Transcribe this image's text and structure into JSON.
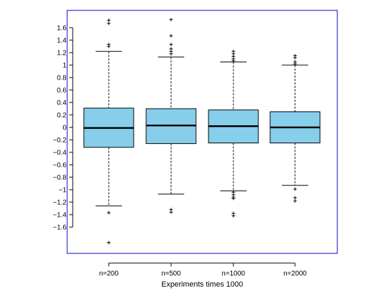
{
  "chart_data": {
    "type": "boxplot",
    "title": "",
    "xlabel": "Experiments times 1000",
    "ylabel": "",
    "ylim": [
      -1.85,
      1.85
    ],
    "yticks": [
      1.6,
      1.4,
      1.2,
      1,
      0.8,
      0.6,
      0.4,
      0.2,
      0,
      -0.2,
      -0.4,
      -0.6,
      -0.8,
      -1,
      -1.2,
      -1.4,
      -1.6
    ],
    "ytick_labels": [
      "1.6",
      "1.4",
      "1.2",
      "1",
      "0.8",
      "0.6",
      "0.4",
      "0.2",
      "0",
      "−0.2",
      "−0.4",
      "−0.6",
      "−0.8",
      "−1",
      "−1.2",
      "−1.4",
      "−1.6"
    ],
    "categories": [
      "n=200",
      "n=500",
      "n=1000",
      "n=2000"
    ],
    "boxes": [
      {
        "label": "n=200",
        "whisker_low": -1.26,
        "q1": -0.32,
        "median": -0.01,
        "q3": 0.31,
        "whisker_high": 1.22,
        "outliers": [
          1.72,
          1.67,
          1.33,
          1.3,
          -1.37,
          -1.85
        ]
      },
      {
        "label": "n=500",
        "whisker_low": -1.07,
        "q1": -0.26,
        "median": 0.03,
        "q3": 0.3,
        "whisker_high": 1.13,
        "outliers": [
          1.73,
          1.47,
          1.33,
          1.26,
          1.22,
          1.18,
          -1.32,
          -1.36
        ]
      },
      {
        "label": "n=1000",
        "whisker_low": -1.02,
        "q1": -0.25,
        "median": 0.02,
        "q3": 0.28,
        "whisker_high": 1.05,
        "outliers": [
          1.22,
          1.18,
          1.14,
          1.1,
          1.07,
          -1.04,
          -1.08,
          -1.12,
          -1.14,
          -1.38,
          -1.42
        ]
      },
      {
        "label": "n=2000",
        "whisker_low": -0.93,
        "q1": -0.25,
        "median": 0.0,
        "q3": 0.25,
        "whisker_high": 1.0,
        "outliers": [
          1.15,
          1.12,
          1.05,
          1.02,
          -0.99,
          -1.13,
          -1.18
        ]
      }
    ],
    "grid": false,
    "colors": {
      "box_fill": "#87ceeb",
      "frame": "#0000cc",
      "line": "#000000"
    }
  }
}
